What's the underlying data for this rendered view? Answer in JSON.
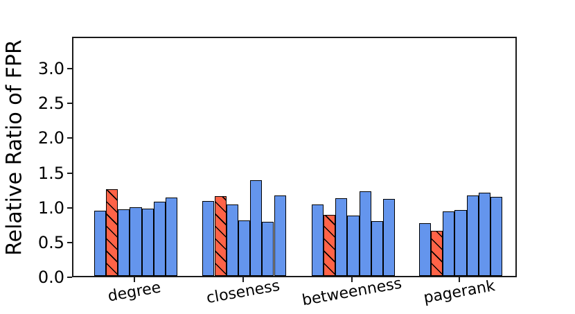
{
  "chart_data": {
    "type": "bar",
    "title": "",
    "xlabel": "",
    "ylabel": "Relative Ratio of FPR",
    "categories": [
      "degree",
      "closeness",
      "betweenness",
      "pagerank"
    ],
    "ytick_labels": [
      "0.0",
      "0.5",
      "1.0",
      "1.5",
      "2.0",
      "2.5",
      "3.0"
    ],
    "ylim": [
      0,
      3.46
    ],
    "grid": false,
    "legend_position": "none",
    "bars_per_group": 7,
    "highlight_index": 1,
    "highlight_hatch": "\\",
    "colors": {
      "bar_fill": "#6495ed",
      "highlight_fill": "#ff6347",
      "bar_edge": "#000000",
      "axis": "#1a1a1a",
      "text": "#000000",
      "background": "#ffffff"
    },
    "groups": [
      {
        "category": "degree",
        "values": [
          0.94,
          1.25,
          0.96,
          0.99,
          0.97,
          1.07,
          1.13
        ]
      },
      {
        "category": "closeness",
        "values": [
          1.08,
          1.15,
          1.03,
          0.8,
          1.38,
          0.78,
          1.16
        ]
      },
      {
        "category": "betweenness",
        "values": [
          1.03,
          0.88,
          1.12,
          0.87,
          1.22,
          0.79,
          1.11
        ]
      },
      {
        "category": "pagerank",
        "values": [
          0.76,
          0.65,
          0.93,
          0.95,
          1.16,
          1.2,
          1.14
        ]
      }
    ]
  }
}
